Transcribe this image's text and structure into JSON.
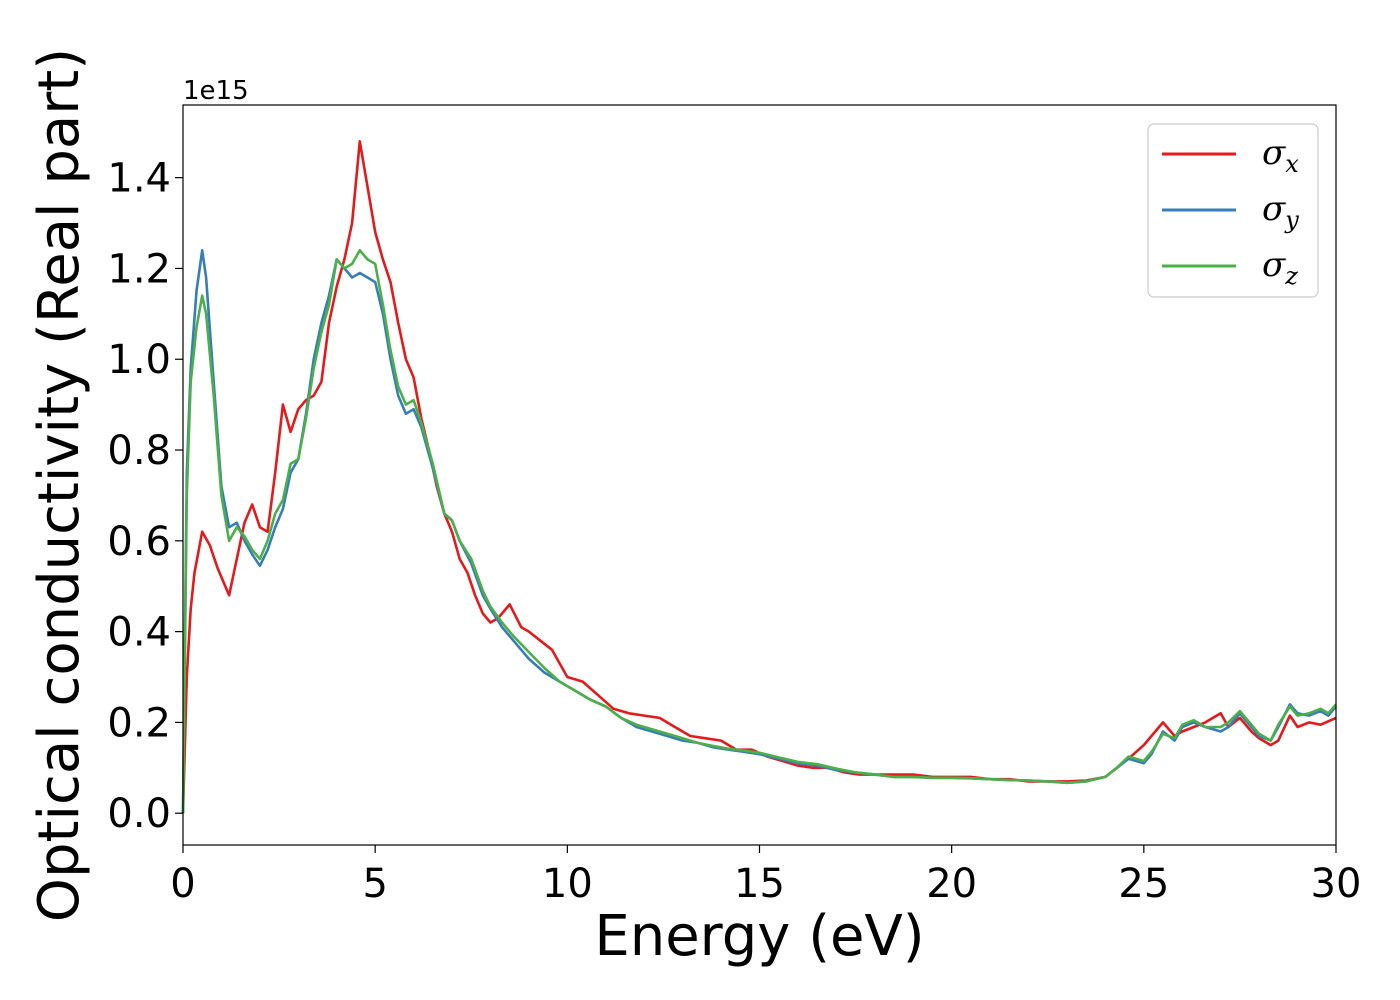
{
  "chart_data": {
    "type": "line",
    "xlabel": "Energy (eV)",
    "ylabel": "Optical conductivity (Real part)",
    "y_offset_label": "1e15",
    "xlim": [
      0,
      30
    ],
    "ylim": [
      -0.07,
      1.56
    ],
    "x_ticks": [
      0,
      5,
      10,
      15,
      20,
      25,
      30
    ],
    "x_tick_labels": [
      "0",
      "5",
      "10",
      "15",
      "20",
      "25",
      "30"
    ],
    "y_ticks": [
      0.0,
      0.2,
      0.4,
      0.6,
      0.8,
      1.0,
      1.2,
      1.4
    ],
    "y_tick_labels": [
      "0.0",
      "0.2",
      "0.4",
      "0.6",
      "0.8",
      "1.0",
      "1.2",
      "1.4"
    ],
    "grid": false,
    "legend_position": "top-right",
    "series": [
      {
        "name": "σx",
        "symbol": "σ",
        "subscript": "x",
        "color": "#e41a1c",
        "points": [
          [
            0,
            0
          ],
          [
            0.1,
            0.3
          ],
          [
            0.2,
            0.45
          ],
          [
            0.3,
            0.53
          ],
          [
            0.5,
            0.62
          ],
          [
            0.7,
            0.59
          ],
          [
            0.9,
            0.54
          ],
          [
            1.2,
            0.48
          ],
          [
            1.4,
            0.56
          ],
          [
            1.6,
            0.64
          ],
          [
            1.8,
            0.68
          ],
          [
            2.0,
            0.63
          ],
          [
            2.2,
            0.62
          ],
          [
            2.4,
            0.75
          ],
          [
            2.6,
            0.9
          ],
          [
            2.8,
            0.84
          ],
          [
            3.0,
            0.89
          ],
          [
            3.2,
            0.91
          ],
          [
            3.4,
            0.92
          ],
          [
            3.6,
            0.95
          ],
          [
            3.8,
            1.08
          ],
          [
            4.0,
            1.16
          ],
          [
            4.2,
            1.22
          ],
          [
            4.4,
            1.3
          ],
          [
            4.6,
            1.48
          ],
          [
            4.8,
            1.38
          ],
          [
            5.0,
            1.28
          ],
          [
            5.2,
            1.22
          ],
          [
            5.4,
            1.17
          ],
          [
            5.6,
            1.08
          ],
          [
            5.8,
            1.0
          ],
          [
            6.0,
            0.96
          ],
          [
            6.2,
            0.87
          ],
          [
            6.4,
            0.8
          ],
          [
            6.6,
            0.72
          ],
          [
            6.8,
            0.66
          ],
          [
            7.0,
            0.62
          ],
          [
            7.2,
            0.56
          ],
          [
            7.4,
            0.53
          ],
          [
            7.6,
            0.48
          ],
          [
            7.8,
            0.44
          ],
          [
            8.0,
            0.42
          ],
          [
            8.2,
            0.43
          ],
          [
            8.5,
            0.46
          ],
          [
            8.8,
            0.41
          ],
          [
            9.0,
            0.4
          ],
          [
            9.3,
            0.38
          ],
          [
            9.6,
            0.36
          ],
          [
            9.8,
            0.33
          ],
          [
            10.0,
            0.3
          ],
          [
            10.4,
            0.29
          ],
          [
            10.8,
            0.26
          ],
          [
            11.2,
            0.23
          ],
          [
            11.6,
            0.22
          ],
          [
            12.0,
            0.215
          ],
          [
            12.4,
            0.21
          ],
          [
            12.8,
            0.19
          ],
          [
            13.2,
            0.17
          ],
          [
            13.6,
            0.165
          ],
          [
            14.0,
            0.16
          ],
          [
            14.4,
            0.14
          ],
          [
            14.8,
            0.14
          ],
          [
            15.2,
            0.125
          ],
          [
            15.6,
            0.115
          ],
          [
            16.0,
            0.105
          ],
          [
            16.4,
            0.1
          ],
          [
            16.8,
            0.1
          ],
          [
            17.2,
            0.09
          ],
          [
            17.6,
            0.085
          ],
          [
            18.0,
            0.085
          ],
          [
            18.5,
            0.085
          ],
          [
            19.0,
            0.085
          ],
          [
            19.5,
            0.08
          ],
          [
            20.0,
            0.08
          ],
          [
            20.5,
            0.08
          ],
          [
            21.0,
            0.075
          ],
          [
            21.5,
            0.075
          ],
          [
            22.0,
            0.07
          ],
          [
            22.5,
            0.07
          ],
          [
            23.0,
            0.07
          ],
          [
            23.5,
            0.072
          ],
          [
            24.0,
            0.08
          ],
          [
            24.3,
            0.1
          ],
          [
            24.6,
            0.12
          ],
          [
            25.0,
            0.15
          ],
          [
            25.2,
            0.17
          ],
          [
            25.5,
            0.2
          ],
          [
            25.8,
            0.17
          ],
          [
            26.0,
            0.18
          ],
          [
            26.3,
            0.19
          ],
          [
            26.6,
            0.2
          ],
          [
            27.0,
            0.22
          ],
          [
            27.2,
            0.19
          ],
          [
            27.5,
            0.21
          ],
          [
            27.8,
            0.18
          ],
          [
            28.0,
            0.165
          ],
          [
            28.3,
            0.15
          ],
          [
            28.5,
            0.16
          ],
          [
            28.8,
            0.215
          ],
          [
            29.0,
            0.19
          ],
          [
            29.3,
            0.2
          ],
          [
            29.6,
            0.195
          ],
          [
            30.0,
            0.21
          ]
        ]
      },
      {
        "name": "σy",
        "symbol": "σ",
        "subscript": "y",
        "color": "#377eb8",
        "points": [
          [
            0,
            0
          ],
          [
            0.1,
            0.75
          ],
          [
            0.2,
            0.98
          ],
          [
            0.35,
            1.15
          ],
          [
            0.5,
            1.24
          ],
          [
            0.6,
            1.18
          ],
          [
            0.8,
            0.95
          ],
          [
            1.0,
            0.72
          ],
          [
            1.2,
            0.63
          ],
          [
            1.4,
            0.64
          ],
          [
            1.6,
            0.6
          ],
          [
            1.8,
            0.57
          ],
          [
            2.0,
            0.545
          ],
          [
            2.2,
            0.58
          ],
          [
            2.4,
            0.63
          ],
          [
            2.6,
            0.67
          ],
          [
            2.8,
            0.75
          ],
          [
            3.0,
            0.78
          ],
          [
            3.2,
            0.88
          ],
          [
            3.4,
            1.0
          ],
          [
            3.6,
            1.08
          ],
          [
            3.8,
            1.14
          ],
          [
            4.0,
            1.22
          ],
          [
            4.2,
            1.2
          ],
          [
            4.4,
            1.18
          ],
          [
            4.6,
            1.19
          ],
          [
            4.8,
            1.18
          ],
          [
            5.0,
            1.17
          ],
          [
            5.2,
            1.1
          ],
          [
            5.4,
            1.0
          ],
          [
            5.6,
            0.92
          ],
          [
            5.8,
            0.88
          ],
          [
            6.0,
            0.89
          ],
          [
            6.2,
            0.85
          ],
          [
            6.5,
            0.76
          ],
          [
            6.8,
            0.66
          ],
          [
            7.0,
            0.645
          ],
          [
            7.2,
            0.6
          ],
          [
            7.5,
            0.55
          ],
          [
            7.8,
            0.48
          ],
          [
            8.0,
            0.45
          ],
          [
            8.3,
            0.41
          ],
          [
            8.6,
            0.38
          ],
          [
            9.0,
            0.34
          ],
          [
            9.4,
            0.31
          ],
          [
            9.8,
            0.29
          ],
          [
            10.2,
            0.27
          ],
          [
            10.6,
            0.25
          ],
          [
            11.0,
            0.235
          ],
          [
            11.4,
            0.21
          ],
          [
            11.8,
            0.19
          ],
          [
            12.2,
            0.18
          ],
          [
            12.6,
            0.17
          ],
          [
            13.0,
            0.16
          ],
          [
            13.4,
            0.155
          ],
          [
            13.8,
            0.145
          ],
          [
            14.2,
            0.14
          ],
          [
            14.6,
            0.135
          ],
          [
            15.0,
            0.13
          ],
          [
            15.5,
            0.12
          ],
          [
            16.0,
            0.11
          ],
          [
            16.5,
            0.105
          ],
          [
            17.0,
            0.095
          ],
          [
            17.5,
            0.09
          ],
          [
            18.0,
            0.085
          ],
          [
            18.5,
            0.08
          ],
          [
            19.0,
            0.08
          ],
          [
            19.5,
            0.078
          ],
          [
            20.0,
            0.078
          ],
          [
            20.5,
            0.077
          ],
          [
            21.0,
            0.075
          ],
          [
            21.5,
            0.073
          ],
          [
            22.0,
            0.072
          ],
          [
            22.5,
            0.07
          ],
          [
            23.0,
            0.067
          ],
          [
            23.5,
            0.07
          ],
          [
            24.0,
            0.08
          ],
          [
            24.3,
            0.1
          ],
          [
            24.6,
            0.12
          ],
          [
            25.0,
            0.11
          ],
          [
            25.2,
            0.13
          ],
          [
            25.5,
            0.18
          ],
          [
            25.8,
            0.16
          ],
          [
            26.0,
            0.19
          ],
          [
            26.3,
            0.2
          ],
          [
            26.6,
            0.19
          ],
          [
            27.0,
            0.18
          ],
          [
            27.2,
            0.19
          ],
          [
            27.5,
            0.22
          ],
          [
            27.8,
            0.19
          ],
          [
            28.0,
            0.17
          ],
          [
            28.3,
            0.16
          ],
          [
            28.5,
            0.19
          ],
          [
            28.8,
            0.24
          ],
          [
            29.0,
            0.22
          ],
          [
            29.3,
            0.215
          ],
          [
            29.6,
            0.225
          ],
          [
            29.8,
            0.215
          ],
          [
            30.0,
            0.235
          ]
        ]
      },
      {
        "name": "σz",
        "symbol": "σ",
        "subscript": "z",
        "color": "#4daf4a",
        "points": [
          [
            0,
            0
          ],
          [
            0.1,
            0.7
          ],
          [
            0.2,
            0.95
          ],
          [
            0.35,
            1.07
          ],
          [
            0.5,
            1.14
          ],
          [
            0.6,
            1.1
          ],
          [
            0.8,
            0.92
          ],
          [
            1.0,
            0.7
          ],
          [
            1.2,
            0.6
          ],
          [
            1.4,
            0.63
          ],
          [
            1.6,
            0.61
          ],
          [
            1.8,
            0.58
          ],
          [
            2.0,
            0.56
          ],
          [
            2.2,
            0.6
          ],
          [
            2.4,
            0.66
          ],
          [
            2.6,
            0.69
          ],
          [
            2.8,
            0.77
          ],
          [
            3.0,
            0.78
          ],
          [
            3.2,
            0.87
          ],
          [
            3.4,
            0.98
          ],
          [
            3.6,
            1.06
          ],
          [
            3.8,
            1.12
          ],
          [
            4.0,
            1.22
          ],
          [
            4.2,
            1.2
          ],
          [
            4.4,
            1.21
          ],
          [
            4.6,
            1.24
          ],
          [
            4.8,
            1.22
          ],
          [
            5.0,
            1.21
          ],
          [
            5.2,
            1.12
          ],
          [
            5.4,
            1.02
          ],
          [
            5.6,
            0.94
          ],
          [
            5.8,
            0.9
          ],
          [
            6.0,
            0.91
          ],
          [
            6.2,
            0.86
          ],
          [
            6.5,
            0.77
          ],
          [
            6.8,
            0.66
          ],
          [
            7.0,
            0.645
          ],
          [
            7.2,
            0.6
          ],
          [
            7.5,
            0.56
          ],
          [
            7.8,
            0.49
          ],
          [
            8.0,
            0.455
          ],
          [
            8.3,
            0.42
          ],
          [
            8.6,
            0.39
          ],
          [
            9.0,
            0.355
          ],
          [
            9.4,
            0.32
          ],
          [
            9.8,
            0.29
          ],
          [
            10.2,
            0.27
          ],
          [
            10.6,
            0.25
          ],
          [
            11.0,
            0.235
          ],
          [
            11.4,
            0.21
          ],
          [
            11.8,
            0.195
          ],
          [
            12.2,
            0.185
          ],
          [
            12.6,
            0.175
          ],
          [
            13.0,
            0.165
          ],
          [
            13.4,
            0.155
          ],
          [
            13.8,
            0.148
          ],
          [
            14.2,
            0.142
          ],
          [
            14.6,
            0.138
          ],
          [
            15.0,
            0.133
          ],
          [
            15.5,
            0.123
          ],
          [
            16.0,
            0.113
          ],
          [
            16.5,
            0.108
          ],
          [
            17.0,
            0.098
          ],
          [
            17.5,
            0.09
          ],
          [
            18.0,
            0.085
          ],
          [
            18.5,
            0.08
          ],
          [
            19.0,
            0.08
          ],
          [
            19.5,
            0.078
          ],
          [
            20.0,
            0.078
          ],
          [
            20.5,
            0.077
          ],
          [
            21.0,
            0.075
          ],
          [
            21.5,
            0.073
          ],
          [
            22.0,
            0.072
          ],
          [
            22.5,
            0.07
          ],
          [
            23.0,
            0.067
          ],
          [
            23.5,
            0.07
          ],
          [
            24.0,
            0.08
          ],
          [
            24.3,
            0.1
          ],
          [
            24.6,
            0.125
          ],
          [
            25.0,
            0.115
          ],
          [
            25.2,
            0.135
          ],
          [
            25.5,
            0.175
          ],
          [
            25.8,
            0.165
          ],
          [
            26.0,
            0.195
          ],
          [
            26.3,
            0.205
          ],
          [
            26.6,
            0.19
          ],
          [
            27.0,
            0.19
          ],
          [
            27.2,
            0.2
          ],
          [
            27.5,
            0.225
          ],
          [
            27.8,
            0.195
          ],
          [
            28.0,
            0.175
          ],
          [
            28.3,
            0.16
          ],
          [
            28.5,
            0.195
          ],
          [
            28.8,
            0.235
          ],
          [
            29.0,
            0.215
          ],
          [
            29.3,
            0.22
          ],
          [
            29.6,
            0.23
          ],
          [
            29.8,
            0.22
          ],
          [
            30.0,
            0.24
          ]
        ]
      }
    ]
  }
}
